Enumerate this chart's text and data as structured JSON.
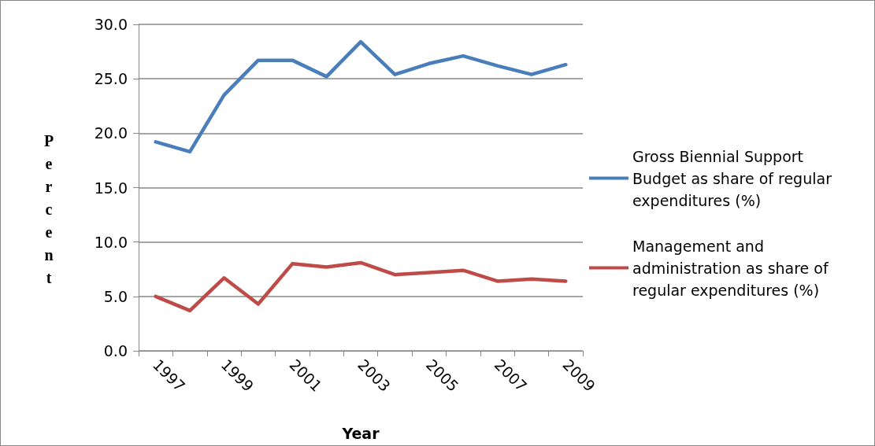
{
  "chart_data": {
    "type": "line",
    "xlabel": "Year",
    "ylabel": "Percent",
    "categories": [
      "1997",
      null,
      "1999",
      null,
      "2001",
      null,
      "2003",
      null,
      "2005",
      null,
      "2007",
      null,
      "2009"
    ],
    "series": [
      {
        "name": "Gross Biennial Support Budget as share of regular expenditures (%)",
        "color": "#4a7ebb",
        "values": [
          19.2,
          18.3,
          23.5,
          26.7,
          26.7,
          25.2,
          28.4,
          25.4,
          26.4,
          27.1,
          26.2,
          25.4,
          26.3
        ]
      },
      {
        "name": "Management and administration as share of regular expenditures (%)",
        "color": "#be4b48",
        "values": [
          5.0,
          3.7,
          6.7,
          4.3,
          8.0,
          7.7,
          8.1,
          7.0,
          7.2,
          7.4,
          6.4,
          6.6,
          6.4
        ]
      }
    ],
    "ylim": [
      0,
      30
    ],
    "yticks": [
      {
        "value": 0,
        "label": "0.0"
      },
      {
        "value": 5,
        "label": "5.0"
      },
      {
        "value": 10,
        "label": "10.0"
      },
      {
        "value": 15,
        "label": "15.0"
      },
      {
        "value": 20,
        "label": "20.0"
      },
      {
        "value": 25,
        "label": "25.0"
      },
      {
        "value": 30,
        "label": "30.0"
      }
    ],
    "grid": "y",
    "legend": "right",
    "marker": "none",
    "line_style": "solid"
  }
}
